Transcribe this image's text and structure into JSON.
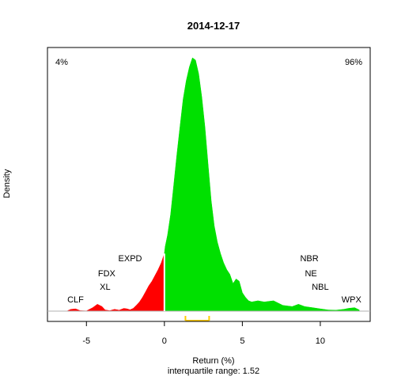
{
  "chart_data": {
    "type": "area",
    "title": "2014-12-17",
    "xlabel": "Return (%)",
    "ylabel": "Density",
    "subtitle": "interquartile range: 1.52",
    "xlim": [
      -7.5,
      13.2
    ],
    "xticks": [
      -5,
      0,
      5,
      10
    ],
    "xtick_labels": [
      "-5",
      "0",
      "5",
      "10"
    ],
    "grid": false,
    "split_at": 0,
    "negative_share_label": "4%",
    "positive_share_label": "96%",
    "colors": {
      "negative": "#ff0000",
      "positive": "#00e000",
      "iqr": "#ffcc00",
      "negative_label": "#e00000",
      "positive_label": "#009900"
    },
    "iqr": [
      1.35,
      2.87
    ],
    "density": {
      "x": [
        -6.2,
        -6.0,
        -5.7,
        -5.4,
        -5.0,
        -4.6,
        -4.3,
        -4.0,
        -3.8,
        -3.5,
        -3.2,
        -2.9,
        -2.6,
        -2.4,
        -2.2,
        -2.0,
        -1.8,
        -1.6,
        -1.4,
        -1.2,
        -1.0,
        -0.8,
        -0.6,
        -0.4,
        -0.2,
        0.0,
        0.05,
        0.2,
        0.4,
        0.6,
        0.8,
        1.0,
        1.2,
        1.4,
        1.6,
        1.8,
        2.0,
        2.2,
        2.4,
        2.6,
        2.8,
        3.0,
        3.2,
        3.4,
        3.6,
        3.8,
        4.0,
        4.2,
        4.4,
        4.6,
        4.8,
        5.0,
        5.2,
        5.4,
        5.6,
        6.0,
        6.4,
        7.0,
        7.6,
        8.2,
        8.6,
        9.0,
        9.5,
        10.0,
        10.5,
        11.0,
        11.5,
        11.8,
        12.2,
        12.5
      ],
      "y": [
        0.002,
        0.008,
        0.01,
        0.002,
        0.001,
        0.015,
        0.03,
        0.02,
        0.005,
        0.002,
        0.008,
        0.004,
        0.012,
        0.01,
        0.006,
        0.012,
        0.025,
        0.04,
        0.06,
        0.085,
        0.11,
        0.13,
        0.155,
        0.18,
        0.21,
        0.25,
        0.28,
        0.33,
        0.42,
        0.55,
        0.68,
        0.8,
        0.92,
        1.0,
        1.06,
        1.1,
        1.09,
        1.03,
        0.93,
        0.8,
        0.64,
        0.48,
        0.37,
        0.3,
        0.25,
        0.21,
        0.18,
        0.16,
        0.12,
        0.14,
        0.13,
        0.08,
        0.06,
        0.045,
        0.04,
        0.045,
        0.04,
        0.045,
        0.025,
        0.02,
        0.03,
        0.02,
        0.015,
        0.01,
        0.005,
        0.004,
        0.008,
        0.012,
        0.015,
        0.005
      ]
    },
    "ticker_labels": [
      {
        "text": "CLF",
        "x": -5.7,
        "row": 3
      },
      {
        "text": "XL",
        "x": -3.8,
        "row": 2
      },
      {
        "text": "FDX",
        "x": -3.7,
        "row": 1
      },
      {
        "text": "EXPD",
        "x": -2.2,
        "row": 0
      },
      {
        "text": "NBR",
        "x": 9.3,
        "row": 0
      },
      {
        "text": "NE",
        "x": 9.4,
        "row": 1
      },
      {
        "text": "NBL",
        "x": 10.0,
        "row": 2
      },
      {
        "text": "WPX",
        "x": 12.0,
        "row": 3
      }
    ]
  }
}
